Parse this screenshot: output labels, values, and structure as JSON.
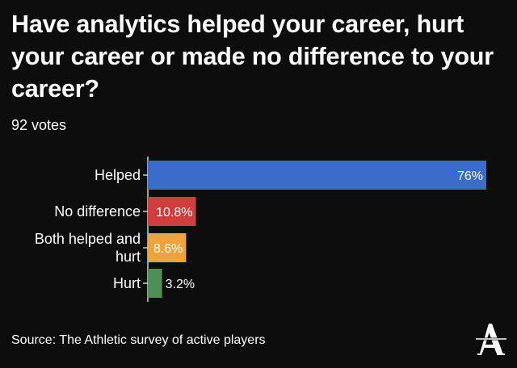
{
  "header": {
    "title": "Have analytics helped your career, hurt your career or made no difference to your career?",
    "votes": "92 votes"
  },
  "footer": {
    "source": "Source: The Athletic survey of active players"
  },
  "logo": {
    "letter": "A",
    "icon": "the-athletic-logo"
  },
  "colors": {
    "background": "#0d0d0d",
    "text": "#ffffff",
    "helped": "#3b6cc9",
    "no_difference": "#cf3d3c",
    "both": "#f0a33a",
    "hurt": "#4d8f54"
  },
  "chart_data": {
    "type": "bar",
    "orientation": "horizontal",
    "categories": [
      "Helped",
      "No difference",
      "Both helped and hurt",
      "Hurt"
    ],
    "category_lines": [
      [
        "Helped"
      ],
      [
        "No difference"
      ],
      [
        "Both helped and",
        "hurt"
      ],
      [
        "Hurt"
      ]
    ],
    "values": [
      76,
      10.8,
      8.6,
      3.2
    ],
    "value_labels": [
      "76%",
      "10.8%",
      "8.6%",
      "3.2%"
    ],
    "colors": [
      "#3b6cc9",
      "#cf3d3c",
      "#f0a33a",
      "#4d8f54"
    ],
    "xlim": [
      0,
      76
    ],
    "grid": false,
    "legend": "none"
  }
}
